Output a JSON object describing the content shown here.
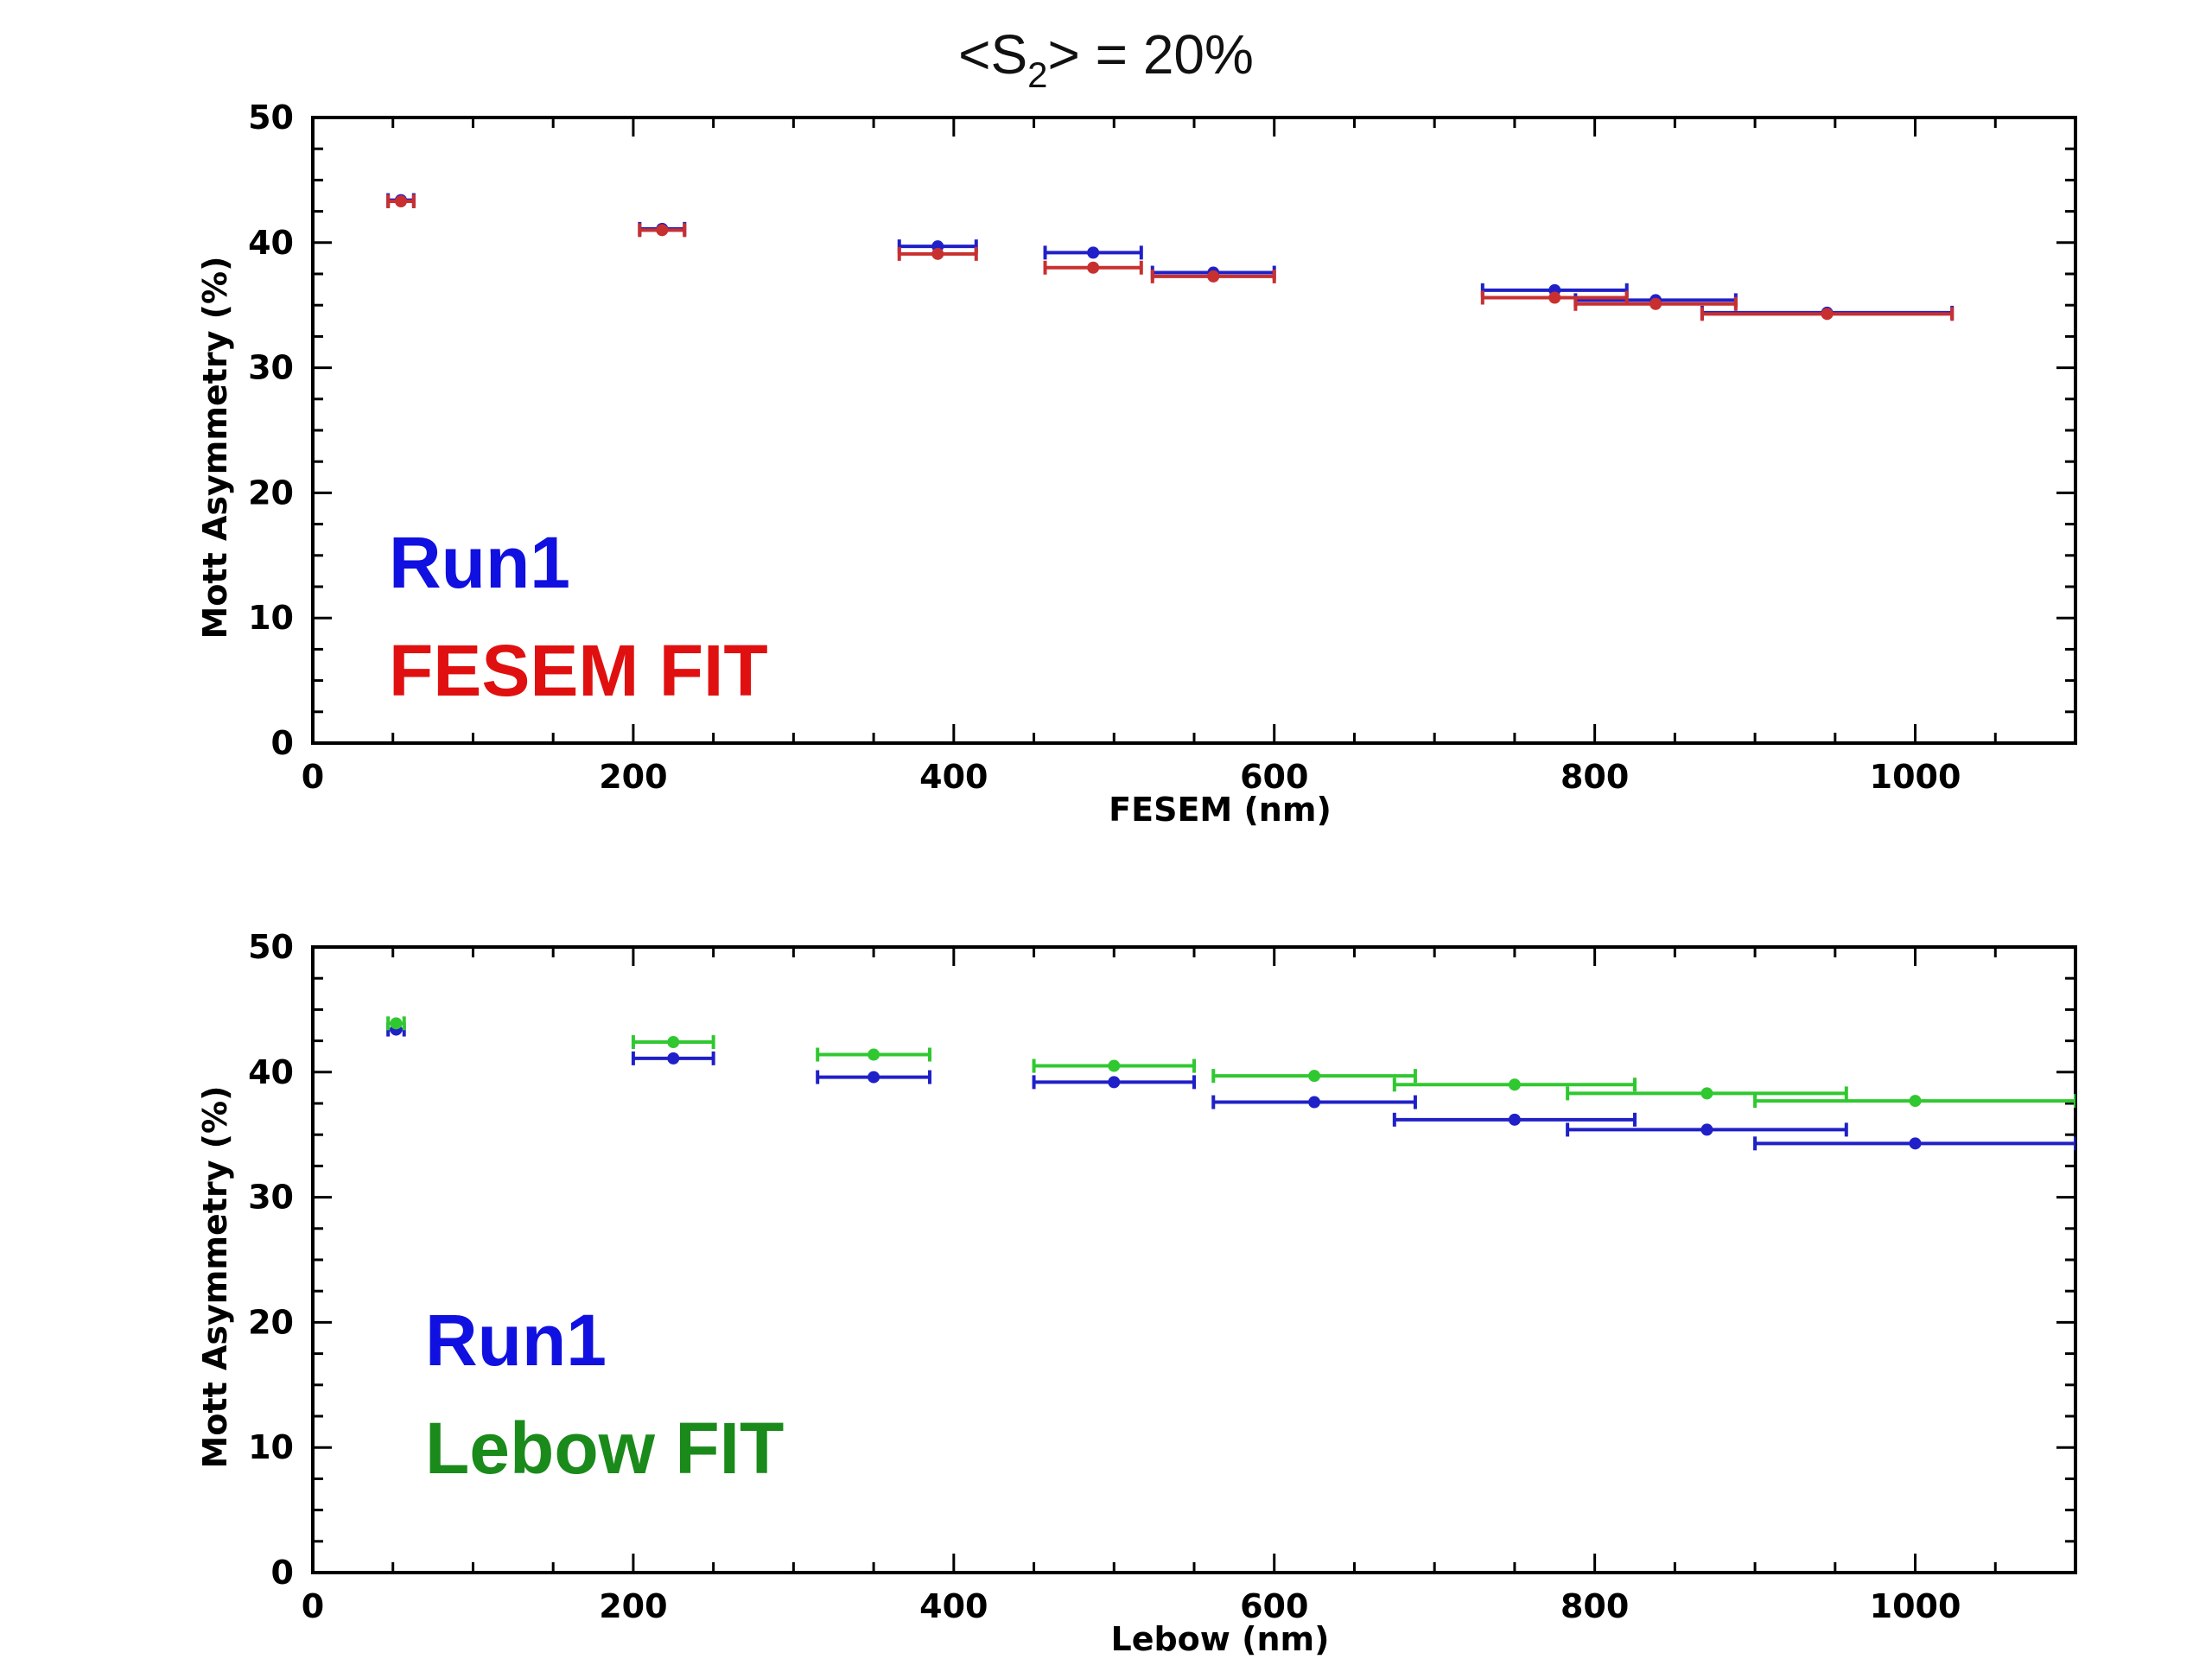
{
  "title": {
    "prefix": "<S",
    "sub": "2",
    "suffix": "> = 20%"
  },
  "chart_data": [
    {
      "type": "scatter",
      "xlabel": "FESEM (nm)",
      "ylabel": "Mott Asymmetry (%)",
      "xlim": [
        0,
        1100
      ],
      "ylim": [
        0,
        50
      ],
      "xticks": [
        0,
        200,
        400,
        600,
        800,
        1000
      ],
      "yticks": [
        0,
        10,
        20,
        30,
        40,
        50
      ],
      "grid": false,
      "legend": [
        {
          "label": "Run1",
          "color": "#1010e0"
        },
        {
          "label": "FESEM FIT",
          "color": "#e01010"
        }
      ],
      "series": [
        {
          "name": "Run1",
          "color": "#2020c8",
          "points": [
            {
              "x": 55,
              "xerr": 8,
              "y": 43.4
            },
            {
              "x": 218,
              "xerr": 14,
              "y": 41.1
            },
            {
              "x": 390,
              "xerr": 24,
              "y": 39.7
            },
            {
              "x": 487,
              "xerr": 30,
              "y": 39.2
            },
            {
              "x": 562,
              "xerr": 38,
              "y": 37.6
            },
            {
              "x": 775,
              "xerr": 45,
              "y": 36.2
            },
            {
              "x": 838,
              "xerr": 50,
              "y": 35.4
            },
            {
              "x": 945,
              "xerr": 78,
              "y": 34.4
            }
          ]
        },
        {
          "name": "FESEM FIT",
          "color": "#c83030",
          "points": [
            {
              "x": 55,
              "xerr": 8,
              "y": 43.3
            },
            {
              "x": 218,
              "xerr": 14,
              "y": 41.0
            },
            {
              "x": 390,
              "xerr": 24,
              "y": 39.1
            },
            {
              "x": 487,
              "xerr": 30,
              "y": 38.0
            },
            {
              "x": 562,
              "xerr": 38,
              "y": 37.3
            },
            {
              "x": 775,
              "xerr": 45,
              "y": 35.6
            },
            {
              "x": 838,
              "xerr": 50,
              "y": 35.1
            },
            {
              "x": 945,
              "xerr": 78,
              "y": 34.3
            }
          ]
        }
      ]
    },
    {
      "type": "scatter",
      "xlabel": "Lebow (nm)",
      "ylabel": "Mott Asymmetry (%)",
      "xlim": [
        0,
        1100
      ],
      "ylim": [
        0,
        50
      ],
      "xticks": [
        0,
        200,
        400,
        600,
        800,
        1000
      ],
      "yticks": [
        0,
        10,
        20,
        30,
        40,
        50
      ],
      "grid": false,
      "legend": [
        {
          "label": "Run1",
          "color": "#1010e0"
        },
        {
          "label": "Lebow FIT",
          "color": "#1a8a1a"
        }
      ],
      "series": [
        {
          "name": "Run1",
          "color": "#2020c8",
          "points": [
            {
              "x": 52,
              "xerr": 5,
              "y": 43.4
            },
            {
              "x": 225,
              "xerr": 25,
              "y": 41.1
            },
            {
              "x": 350,
              "xerr": 35,
              "y": 39.6
            },
            {
              "x": 500,
              "xerr": 50,
              "y": 39.2
            },
            {
              "x": 625,
              "xerr": 63,
              "y": 37.6
            },
            {
              "x": 750,
              "xerr": 75,
              "y": 36.2
            },
            {
              "x": 870,
              "xerr": 87,
              "y": 35.4
            },
            {
              "x": 1000,
              "xerr": 100,
              "y": 34.3
            }
          ]
        },
        {
          "name": "Lebow FIT",
          "color": "#30c830",
          "points": [
            {
              "x": 52,
              "xerr": 5,
              "y": 43.9
            },
            {
              "x": 225,
              "xerr": 25,
              "y": 42.4
            },
            {
              "x": 350,
              "xerr": 35,
              "y": 41.4
            },
            {
              "x": 500,
              "xerr": 50,
              "y": 40.5
            },
            {
              "x": 625,
              "xerr": 63,
              "y": 39.7
            },
            {
              "x": 750,
              "xerr": 75,
              "y": 39.0
            },
            {
              "x": 870,
              "xerr": 87,
              "y": 38.3
            },
            {
              "x": 1000,
              "xerr": 100,
              "y": 37.7
            }
          ]
        }
      ]
    }
  ]
}
